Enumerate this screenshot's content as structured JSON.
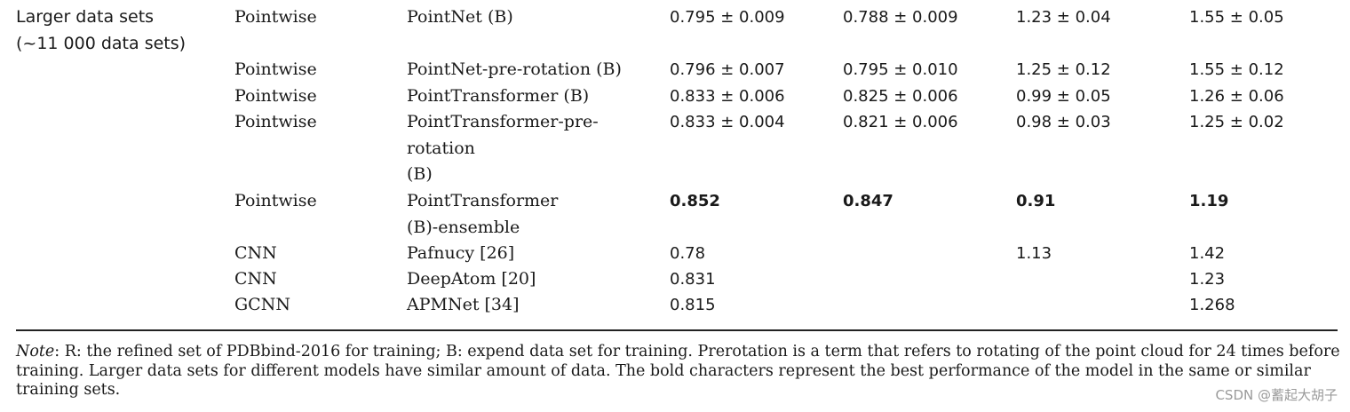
{
  "group_label": {
    "line1": "Larger data sets",
    "line2": "(~11 000 data sets)"
  },
  "rows": [
    {
      "type": "Pointwise",
      "model": [
        "PointNet (B)"
      ],
      "c1": "0.795 ± 0.009",
      "c2": "0.788 ± 0.009",
      "c3": "1.23 ± 0.04",
      "c4": "1.55 ± 0.05",
      "bold": false
    },
    {
      "type": "Pointwise",
      "model": [
        "PointNet-pre-rotation (B)"
      ],
      "c1": "0.796 ± 0.007",
      "c2": "0.795 ± 0.010",
      "c3": "1.25 ± 0.12",
      "c4": "1.55 ± 0.12",
      "bold": false
    },
    {
      "type": "Pointwise",
      "model": [
        "PointTransformer (B)"
      ],
      "c1": "0.833 ± 0.006",
      "c2": "0.825 ± 0.006",
      "c3": "0.99 ± 0.05",
      "c4": "1.26 ± 0.06",
      "bold": false
    },
    {
      "type": "Pointwise",
      "model": [
        "PointTransformer-pre-",
        "rotation",
        "(B)"
      ],
      "c1": "0.833 ± 0.004",
      "c2": "0.821 ± 0.006",
      "c3": "0.98 ± 0.03",
      "c4": "1.25 ± 0.02",
      "bold": false
    },
    {
      "type": "Pointwise",
      "model": [
        "PointTransformer",
        "(B)-ensemble"
      ],
      "c1": "0.852",
      "c2": "0.847",
      "c3": "0.91",
      "c4": "1.19",
      "bold": true
    },
    {
      "type": "CNN",
      "model": [
        "Pafnucy [26]"
      ],
      "c1": "0.78",
      "c2": "",
      "c3": "1.13",
      "c4": "1.42",
      "bold": false
    },
    {
      "type": "CNN",
      "model": [
        "DeepAtom [20]"
      ],
      "c1": "0.831",
      "c2": "",
      "c3": "",
      "c4": "1.23",
      "bold": false
    },
    {
      "type": "GCNN",
      "model": [
        "APMNet [34]"
      ],
      "c1": "0.815",
      "c2": "",
      "c3": "",
      "c4": "1.268",
      "bold": false
    }
  ],
  "note": {
    "label": "Note",
    "text": ": R: the refined set of PDBbind-2016 for training; B: expend data set for training. Prerotation is a term that refers to rotating of the point cloud for 24 times before training. Larger data sets for different models have similar amount of data. The bold characters represent the best performance of the model in the same or similar training sets."
  },
  "watermark": "CSDN @蓄起大胡子"
}
